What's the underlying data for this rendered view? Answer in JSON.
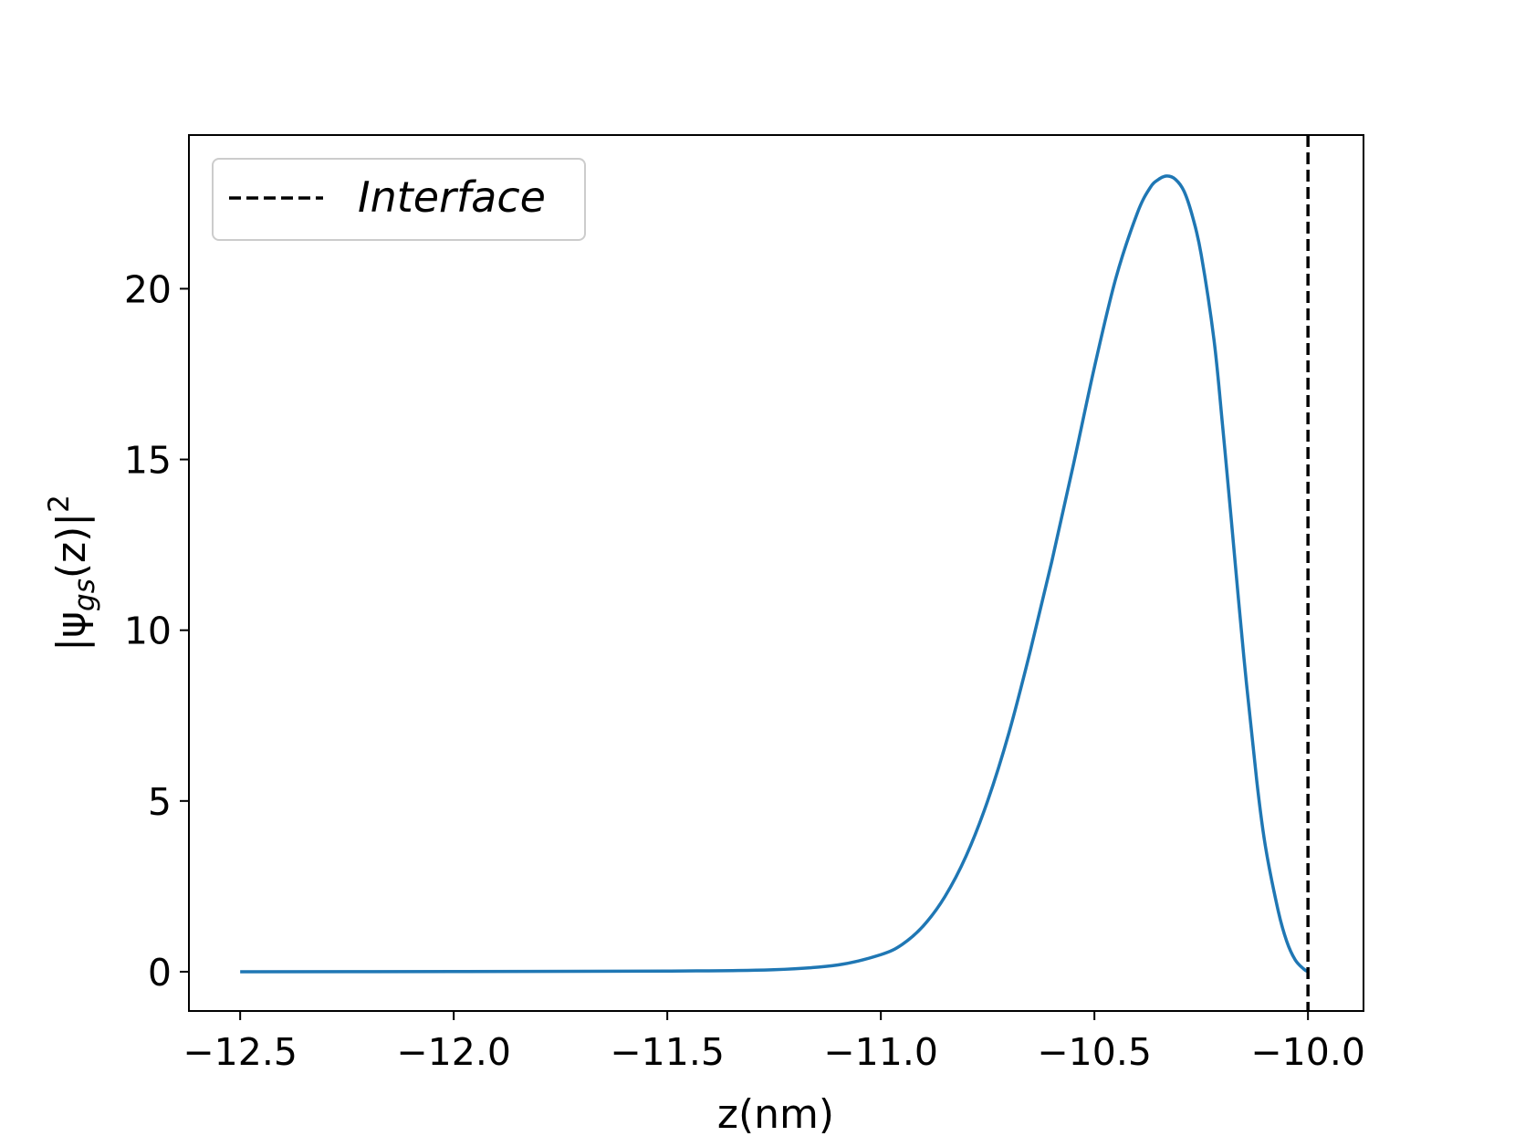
{
  "chart_data": {
    "type": "line",
    "title": "",
    "xlabel": "z(nm)",
    "ylabel": {
      "main": "|ψ",
      "subscript": "gs",
      "after": "(z)|",
      "superscript": "2"
    },
    "xlim": [
      -12.62,
      -9.87
    ],
    "ylim": [
      -1.15,
      24.5
    ],
    "x_ticks": [
      -12.5,
      -12.0,
      -11.5,
      -11.0,
      -10.5,
      -10.0
    ],
    "x_tick_labels": [
      "−12.5",
      "−12.0",
      "−11.5",
      "−11.0",
      "−10.5",
      "−10.0"
    ],
    "y_ticks": [
      0,
      5,
      10,
      15,
      20
    ],
    "y_tick_labels": [
      "0",
      "5",
      "10",
      "15",
      "20"
    ],
    "grid": false,
    "series": [
      {
        "color": "#1f77b4",
        "x": [
          -12.5,
          -12.0,
          -11.5,
          -11.25,
          -11.1,
          -11.0,
          -10.95,
          -10.9,
          -10.85,
          -10.8,
          -10.75,
          -10.7,
          -10.65,
          -10.6,
          -10.55,
          -10.5,
          -10.45,
          -10.4,
          -10.37,
          -10.35,
          -10.33,
          -10.31,
          -10.29,
          -10.27,
          -10.25,
          -10.22,
          -10.2,
          -10.18,
          -10.15,
          -10.12,
          -10.1,
          -10.07,
          -10.05,
          -10.03,
          -10.01,
          -10.0
        ],
        "y": [
          0.0,
          0.005,
          0.02,
          0.06,
          0.2,
          0.5,
          0.8,
          1.35,
          2.2,
          3.4,
          5.0,
          7.0,
          9.4,
          12.0,
          14.8,
          17.7,
          20.3,
          22.2,
          22.95,
          23.2,
          23.3,
          23.2,
          22.85,
          22.1,
          21.0,
          18.5,
          16.0,
          13.3,
          9.2,
          5.6,
          3.7,
          1.8,
          0.9,
          0.35,
          0.08,
          0.0
        ]
      },
      {
        "name": "Interface",
        "type": "vline",
        "x": -10.0,
        "color": "#000000",
        "style": "dashed"
      }
    ],
    "legend": {
      "placement": "top-left",
      "entries": [
        "Interface"
      ]
    }
  }
}
